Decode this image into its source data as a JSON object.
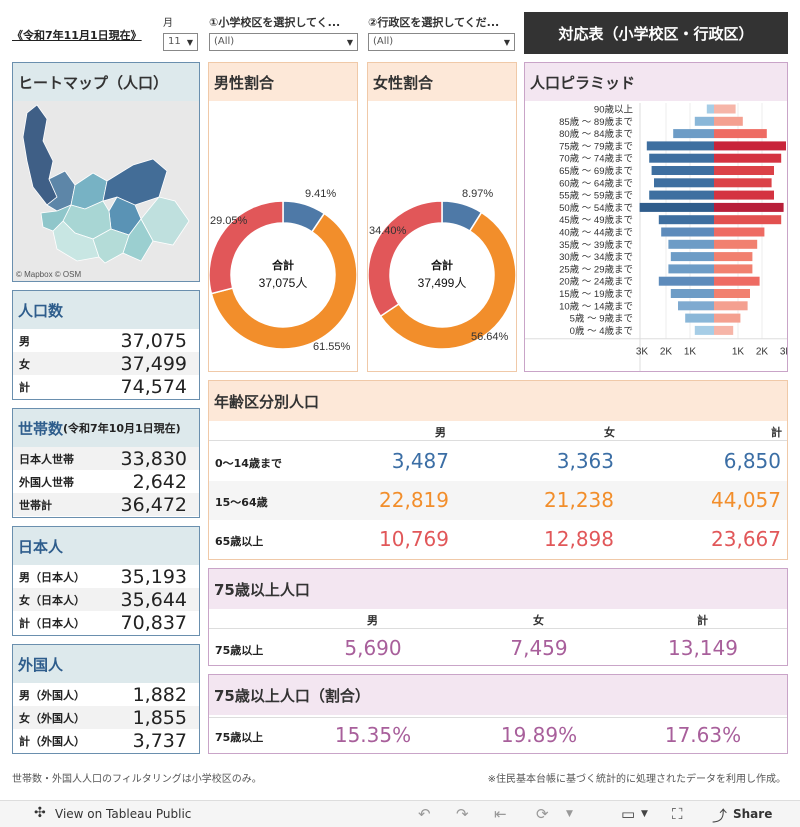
{
  "header": {
    "as_of": "《令和7年11月1日現在》",
    "month_label": "月",
    "month_value": "11",
    "school_label": "①小学校区を選択してく...",
    "school_value": "(All)",
    "ward_label": "②行政区を選択してくだ...",
    "ward_value": "(All)",
    "banner": "対応表（小学校区・行政区）"
  },
  "heatmap": {
    "title": "ヒートマップ（人口）",
    "attribution": "© Mapbox  © OSM"
  },
  "population": {
    "title": "人口数",
    "rows": [
      {
        "label": "男",
        "value": "37,075"
      },
      {
        "label": "女",
        "value": "37,499"
      },
      {
        "label": "計",
        "value": "74,574"
      }
    ]
  },
  "households": {
    "title": "世帯数",
    "subtitle": "(令和7年10月1日現在)",
    "rows": [
      {
        "label": "日本人世帯",
        "value": "33,830"
      },
      {
        "label": "外国人世帯",
        "value": "2,642"
      },
      {
        "label": "世帯計",
        "value": "36,472"
      }
    ]
  },
  "japanese": {
    "title": "日本人",
    "rows": [
      {
        "label": "男（日本人）",
        "value": "35,193"
      },
      {
        "label": "女（日本人）",
        "value": "35,644"
      },
      {
        "label": "計（日本人）",
        "value": "70,837"
      }
    ]
  },
  "foreign": {
    "title": "外国人",
    "rows": [
      {
        "label": "男（外国人）",
        "value": "1,882"
      },
      {
        "label": "女（外国人）",
        "value": "1,855"
      },
      {
        "label": "計（外国人）",
        "value": "3,737"
      }
    ]
  },
  "donut_male": {
    "title": "男性割合",
    "center_label": "合計",
    "center_value": "37,075人",
    "pct_labels": [
      "9.41%",
      "61.55%",
      "29.05%"
    ]
  },
  "donut_female": {
    "title": "女性割合",
    "center_label": "合計",
    "center_value": "37,499人",
    "pct_labels": [
      "8.97%",
      "56.64%",
      "34.40%"
    ]
  },
  "age_table": {
    "title": "年齢区分別人口",
    "cols": [
      "男",
      "女",
      "計"
    ],
    "rows": [
      {
        "label": "0〜14歳まで",
        "values": [
          "3,487",
          "3,363",
          "6,850"
        ],
        "color": "#3b6ea5"
      },
      {
        "label": "15〜64歳",
        "values": [
          "22,819",
          "21,238",
          "44,057"
        ],
        "color": "#f28e2b"
      },
      {
        "label": "65歳以上",
        "values": [
          "10,769",
          "12,898",
          "23,667"
        ],
        "color": "#e15759"
      }
    ]
  },
  "over75": {
    "title": "75歳以上人口",
    "cols": [
      "男",
      "女",
      "計"
    ],
    "row_label": "75歳以上",
    "values": [
      "5,690",
      "7,459",
      "13,149"
    ]
  },
  "over75_ratio": {
    "title": "75歳以上人口（割合）",
    "row_label": "75歳以上",
    "values": [
      "15.35%",
      "19.89%",
      "17.63%"
    ]
  },
  "footer": {
    "left": "世帯数・外国人人口のフィルタリングは小学校区のみ。",
    "right": "※住民基本台帳に基づく統計的に処理されたデータを利用し作成。"
  },
  "toolbar": {
    "view_on": "View on Tableau Public",
    "share": "Share"
  },
  "colors": {
    "male": "#3b6ea5",
    "mid": "#f28e2b",
    "senior": "#e15759",
    "purple": "#a85f9b"
  },
  "chart_data": [
    {
      "type": "pie",
      "title": "男性割合",
      "categories": [
        "0〜14歳まで",
        "15〜64歳",
        "65歳以上"
      ],
      "values": [
        9.41,
        61.55,
        29.05
      ],
      "colors": [
        "#4e79a7",
        "#f28e2b",
        "#e15759"
      ]
    },
    {
      "type": "pie",
      "title": "女性割合",
      "categories": [
        "0〜14歳まで",
        "15〜64歳",
        "65歳以上"
      ],
      "values": [
        8.97,
        56.64,
        34.4
      ],
      "colors": [
        "#4e79a7",
        "#f28e2b",
        "#e15759"
      ]
    },
    {
      "type": "bar",
      "title": "人口ピラミッド",
      "categories": [
        "90歳以上",
        "85歳 〜 89歳まで",
        "80歳 〜 84歳まで",
        "75歳 〜 79歳まで",
        "70歳 〜 74歳まで",
        "65歳 〜 69歳まで",
        "60歳 〜 64歳まで",
        "55歳 〜 59歳まで",
        "50歳 〜 54歳まで",
        "45歳 〜 49歳まで",
        "40歳 〜 44歳まで",
        "35歳 〜 39歳まで",
        "30歳 〜 34歳まで",
        "25歳 〜 29歳まで",
        "20歳 〜 24歳まで",
        "15歳 〜 19歳まで",
        "10歳 〜 14歳まで",
        "5歳 〜 9歳まで",
        "0歳 〜 4歳まで"
      ],
      "series": [
        {
          "name": "男",
          "values": [
            300,
            800,
            1700,
            2800,
            2700,
            2600,
            2500,
            2700,
            3100,
            2300,
            2200,
            1900,
            1800,
            1900,
            2300,
            1800,
            1500,
            1200,
            800
          ]
        },
        {
          "name": "女",
          "values": [
            900,
            1200,
            2200,
            3000,
            2800,
            2500,
            2400,
            2500,
            2900,
            2800,
            2100,
            1800,
            1600,
            1600,
            1900,
            1500,
            1400,
            1100,
            800
          ]
        }
      ],
      "x_tick_labels": [
        "3K",
        "2K",
        "1K",
        "1K",
        "2K",
        "3K"
      ],
      "xlim": [
        -3000,
        3000
      ]
    }
  ]
}
